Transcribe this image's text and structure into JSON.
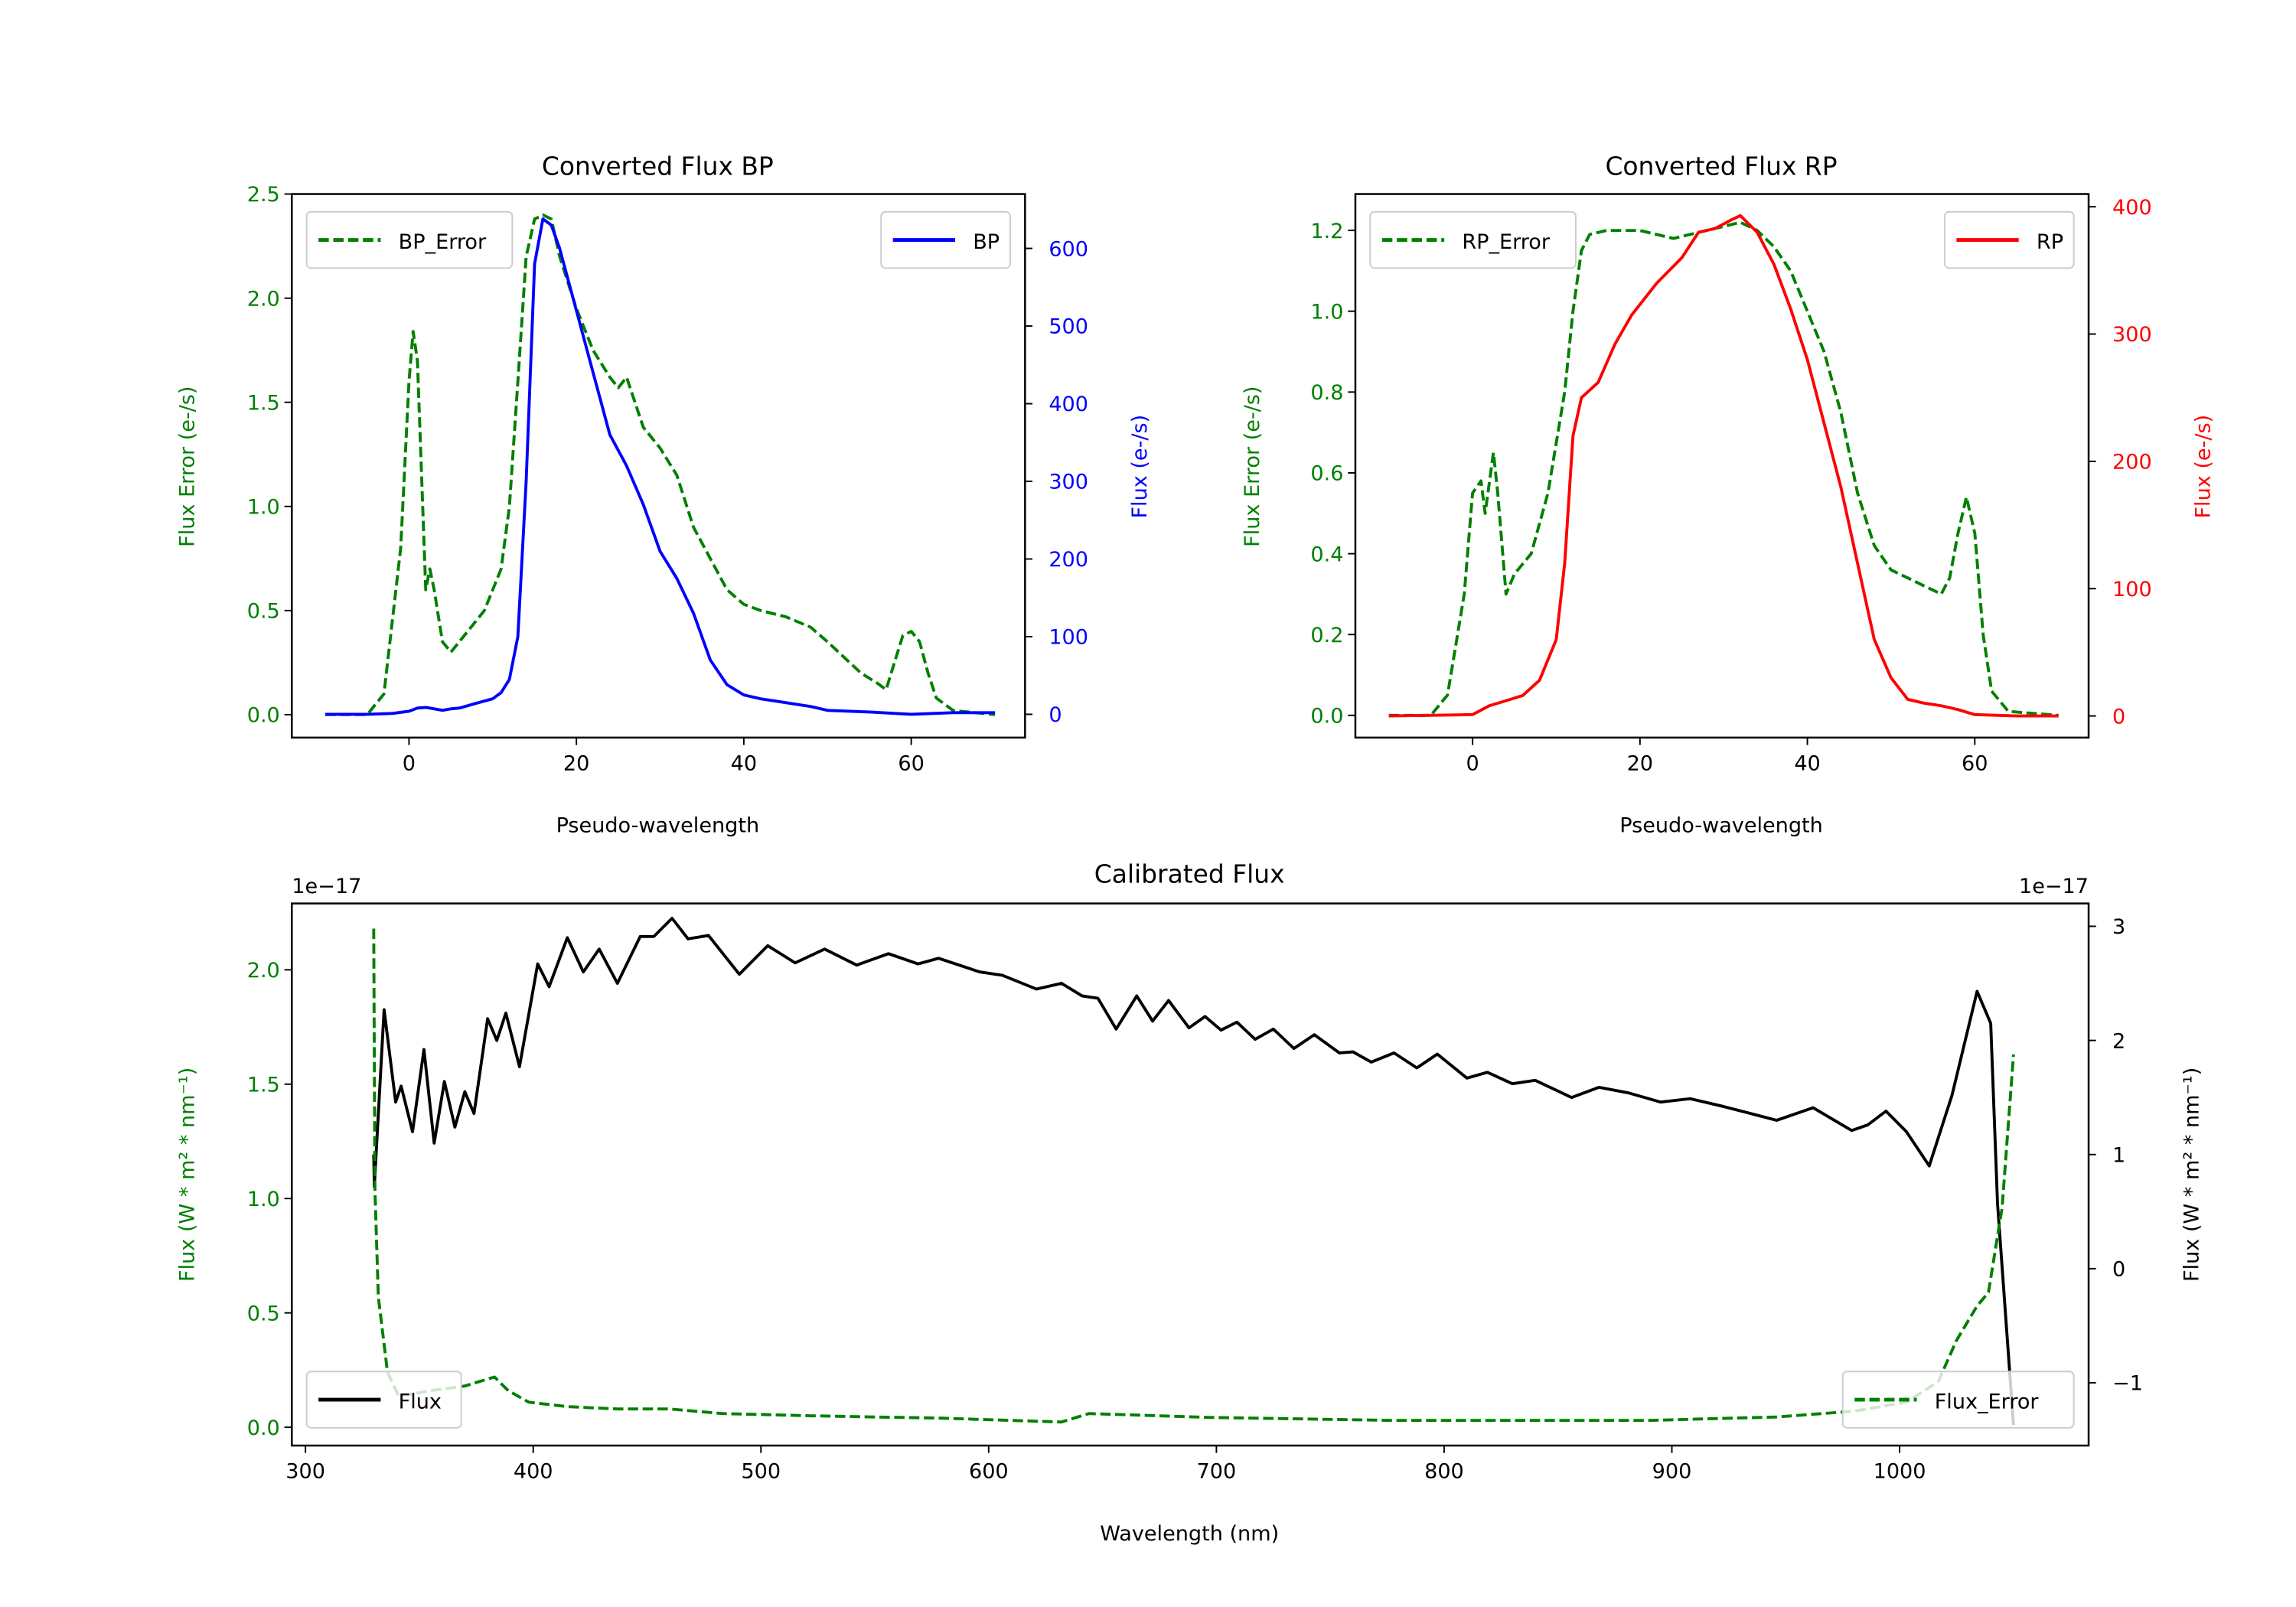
{
  "colors": {
    "error": "#008000",
    "bp": "#0000ff",
    "rp": "#ff0000",
    "flux": "#000000",
    "axis": "#000000"
  },
  "chart_data": [
    {
      "id": "bp",
      "type": "line",
      "title": "Converted Flux BP",
      "xlabel": "Pseudo-wavelength",
      "ylabel_left": "Flux Error (e-/s)",
      "ylabel_right": "Flux (e-/s)",
      "xlim": [
        -14,
        73.6
      ],
      "ylim_left": [
        -0.11,
        2.5
      ],
      "ylim_right": [
        -30,
        670
      ],
      "xticks": [
        0,
        20,
        40,
        60
      ],
      "xtick_labels": [
        "0",
        "20",
        "40",
        "60"
      ],
      "yticks_left": [
        0,
        0.5,
        1.0,
        1.5,
        2.0,
        2.5
      ],
      "ytick_labels_left": [
        "0.0",
        "0.5",
        "1.0",
        "1.5",
        "2.0",
        "2.5"
      ],
      "yticks_right": [
        0,
        100,
        200,
        300,
        400,
        500,
        600
      ],
      "ytick_labels_right": [
        "0",
        "100",
        "200",
        "300",
        "400",
        "500",
        "600"
      ],
      "legend": [
        {
          "label": "BP_Error",
          "placement": "upper-left"
        },
        {
          "label": "BP",
          "placement": "upper-right"
        }
      ],
      "series": [
        {
          "name": "BP_Error",
          "axis": "left",
          "style": "dashed",
          "color_key": "error",
          "x": [
            -10,
            -5,
            -3,
            -1,
            0,
            0.5,
            1,
            2,
            2.5,
            3,
            4,
            5,
            7,
            9,
            11,
            12,
            13,
            14,
            15,
            16,
            17,
            18,
            20,
            22,
            24,
            25,
            26,
            28,
            30,
            32,
            34,
            36,
            38,
            40,
            42,
            45,
            48,
            50,
            54,
            56,
            57,
            58,
            59,
            60,
            61,
            62,
            63,
            65,
            70
          ],
          "y": [
            0,
            0,
            0.1,
            0.8,
            1.6,
            1.84,
            1.7,
            0.6,
            0.7,
            0.6,
            0.35,
            0.3,
            0.4,
            0.5,
            0.7,
            1.0,
            1.6,
            2.2,
            2.38,
            2.4,
            2.38,
            2.2,
            1.95,
            1.75,
            1.62,
            1.57,
            1.62,
            1.38,
            1.28,
            1.15,
            0.9,
            0.75,
            0.6,
            0.53,
            0.5,
            0.47,
            0.42,
            0.35,
            0.2,
            0.15,
            0.12,
            0.25,
            0.38,
            0.4,
            0.35,
            0.2,
            0.08,
            0.02,
            0
          ]
        },
        {
          "name": "BP",
          "axis": "right",
          "style": "solid",
          "color_key": "bp",
          "x": [
            -10,
            -5,
            -2,
            0,
            1,
            2,
            3,
            4,
            5,
            6,
            8,
            10,
            11,
            12,
            13,
            14,
            15,
            16,
            17,
            18,
            20,
            22,
            24,
            26,
            28,
            30,
            32,
            34,
            36,
            38,
            40,
            42,
            45,
            48,
            50,
            55,
            60,
            65,
            70
          ],
          "y": [
            0,
            0,
            1,
            4,
            8,
            9,
            7,
            5,
            7,
            8,
            14,
            20,
            28,
            45,
            100,
            300,
            580,
            638,
            630,
            600,
            520,
            440,
            360,
            320,
            270,
            210,
            175,
            130,
            70,
            38,
            25,
            20,
            15,
            10,
            5,
            3,
            0,
            2,
            2
          ]
        }
      ]
    },
    {
      "id": "rp",
      "type": "line",
      "title": "Converted Flux RP",
      "xlabel": "Pseudo-wavelength",
      "ylabel_left": "Flux Error (e-/s)",
      "ylabel_right": "Flux (e-/s)",
      "xlim": [
        -14,
        73.6
      ],
      "ylim_left": [
        -0.055,
        1.29
      ],
      "ylim_right": [
        -17,
        410
      ],
      "xticks": [
        0,
        20,
        40,
        60
      ],
      "xtick_labels": [
        "0",
        "20",
        "40",
        "60"
      ],
      "yticks_left": [
        0,
        0.2,
        0.4,
        0.6,
        0.8,
        1.0,
        1.2
      ],
      "ytick_labels_left": [
        "0.0",
        "0.2",
        "0.4",
        "0.6",
        "0.8",
        "1.0",
        "1.2"
      ],
      "yticks_right": [
        0,
        100,
        200,
        300,
        400
      ],
      "ytick_labels_right": [
        "0",
        "100",
        "200",
        "300",
        "400"
      ],
      "legend": [
        {
          "label": "RP_Error",
          "placement": "upper-left"
        },
        {
          "label": "RP",
          "placement": "upper-right"
        }
      ],
      "series": [
        {
          "name": "RP_Error",
          "axis": "left",
          "style": "dashed",
          "color_key": "error",
          "x": [
            -10,
            -5,
            -3,
            -1,
            0,
            1,
            1.5,
            2.5,
            3,
            4,
            5,
            7,
            9,
            11,
            12,
            13,
            14,
            16,
            20,
            24,
            28,
            32,
            34,
            36,
            38,
            40,
            42,
            44,
            46,
            48,
            50,
            52,
            54,
            56,
            57,
            58,
            59,
            60,
            61,
            62,
            64,
            70
          ],
          "y": [
            0,
            0,
            0.05,
            0.3,
            0.55,
            0.58,
            0.5,
            0.65,
            0.55,
            0.3,
            0.35,
            0.4,
            0.55,
            0.8,
            1.0,
            1.15,
            1.19,
            1.2,
            1.2,
            1.18,
            1.2,
            1.22,
            1.2,
            1.16,
            1.1,
            1.0,
            0.9,
            0.75,
            0.55,
            0.42,
            0.36,
            0.34,
            0.32,
            0.3,
            0.34,
            0.45,
            0.54,
            0.45,
            0.2,
            0.06,
            0.01,
            0
          ]
        },
        {
          "name": "RP",
          "axis": "right",
          "style": "solid",
          "color_key": "rp",
          "x": [
            -10,
            0,
            2,
            4,
            6,
            8,
            10,
            11,
            12,
            13,
            15,
            17,
            19,
            22,
            25,
            27,
            29,
            31,
            32,
            34,
            36,
            38,
            40,
            42,
            44,
            46,
            48,
            50,
            52,
            54,
            56,
            58,
            60,
            65,
            70
          ],
          "y": [
            0,
            1,
            8,
            12,
            16,
            28,
            60,
            120,
            220,
            250,
            262,
            292,
            315,
            340,
            360,
            380,
            383,
            390,
            393,
            380,
            355,
            320,
            280,
            230,
            180,
            120,
            60,
            30,
            13,
            10,
            8,
            5,
            1,
            0,
            0
          ]
        }
      ]
    },
    {
      "id": "calibrated",
      "type": "line",
      "title": "Calibrated Flux",
      "xlabel": "Wavelength (nm)",
      "ylabel_left": "Flux (W * m² * nm⁻¹)",
      "ylabel_right": "Flux (W * m² * nm⁻¹)",
      "offset_left": "1e−17",
      "offset_right": "1e−17",
      "xlim": [
        294,
        1083
      ],
      "ylim_left": [
        -0.08,
        2.29
      ],
      "ylim_right": [
        -1.55,
        3.2
      ],
      "xticks": [
        300,
        400,
        500,
        600,
        700,
        800,
        900,
        1000
      ],
      "xtick_labels": [
        "300",
        "400",
        "500",
        "600",
        "700",
        "800",
        "900",
        "1000"
      ],
      "yticks_left": [
        0,
        0.5,
        1.0,
        1.5,
        2.0
      ],
      "ytick_labels_left": [
        "0.0",
        "0.5",
        "1.0",
        "1.5",
        "2.0"
      ],
      "yticks_right": [
        -1,
        0,
        1,
        2,
        3
      ],
      "ytick_labels_right": [
        "−1",
        "0",
        "1",
        "2",
        "3"
      ],
      "legend": [
        {
          "label": "Flux",
          "placement": "lower-left"
        },
        {
          "label": "Flux_Error",
          "placement": "lower-right"
        }
      ],
      "series": [
        {
          "name": "Flux",
          "axis": "right",
          "style": "solid",
          "color_key": "flux",
          "x": [
            330,
            330.2,
            334.5,
            339.6,
            342,
            347,
            352,
            356.5,
            361,
            365.6,
            370,
            374,
            380,
            384,
            388,
            394,
            402,
            407,
            415,
            422,
            429,
            437,
            447,
            453,
            461,
            468,
            477,
            490.5,
            503,
            515,
            528,
            542,
            556,
            569,
            578,
            596,
            606,
            621,
            632,
            641,
            648,
            656,
            665,
            672,
            679,
            688,
            695,
            702,
            709,
            717,
            725,
            734,
            743,
            754,
            760,
            768,
            778,
            788,
            797,
            810,
            819,
            830,
            840,
            856,
            868,
            881,
            895,
            908,
            923,
            946,
            962,
            979,
            986,
            994,
            1003,
            1013,
            1023,
            1034,
            1040,
            1043,
            1050
          ],
          "y": [
            1.0,
            0.72,
            2.27,
            1.46,
            1.6,
            1.2,
            1.92,
            1.1,
            1.64,
            1.24,
            1.55,
            1.36,
            2.19,
            2.0,
            2.24,
            1.77,
            2.67,
            2.47,
            2.9,
            2.6,
            2.8,
            2.5,
            2.91,
            2.91,
            3.07,
            2.89,
            2.92,
            2.58,
            2.83,
            2.68,
            2.8,
            2.66,
            2.76,
            2.67,
            2.72,
            2.6,
            2.57,
            2.45,
            2.5,
            2.39,
            2.37,
            2.1,
            2.39,
            2.17,
            2.35,
            2.11,
            2.21,
            2.09,
            2.16,
            2.01,
            2.1,
            1.93,
            2.05,
            1.89,
            1.9,
            1.81,
            1.89,
            1.76,
            1.88,
            1.67,
            1.72,
            1.62,
            1.65,
            1.5,
            1.59,
            1.54,
            1.46,
            1.49,
            1.42,
            1.3,
            1.41,
            1.21,
            1.26,
            1.38,
            1.2,
            0.9,
            1.52,
            2.43,
            2.15,
            0.57,
            -1.37
          ]
        },
        {
          "name": "Flux_Error",
          "axis": "left",
          "style": "dashed",
          "color_key": "error",
          "x": [
            330,
            330.5,
            332,
            336,
            341,
            355,
            370,
            383,
            389,
            398,
            415,
            437,
            460,
            483,
            522,
            579,
            632,
            644,
            697,
            777,
            890,
            946,
            980,
            1003,
            1017,
            1025,
            1034,
            1039,
            1045,
            1050
          ],
          "y": [
            2.18,
            1.04,
            0.57,
            0.24,
            0.135,
            0.16,
            0.18,
            0.22,
            0.16,
            0.11,
            0.09,
            0.08,
            0.08,
            0.06,
            0.05,
            0.04,
            0.023,
            0.06,
            0.043,
            0.03,
            0.03,
            0.045,
            0.07,
            0.11,
            0.2,
            0.38,
            0.53,
            0.59,
            0.96,
            1.63
          ]
        }
      ]
    }
  ]
}
